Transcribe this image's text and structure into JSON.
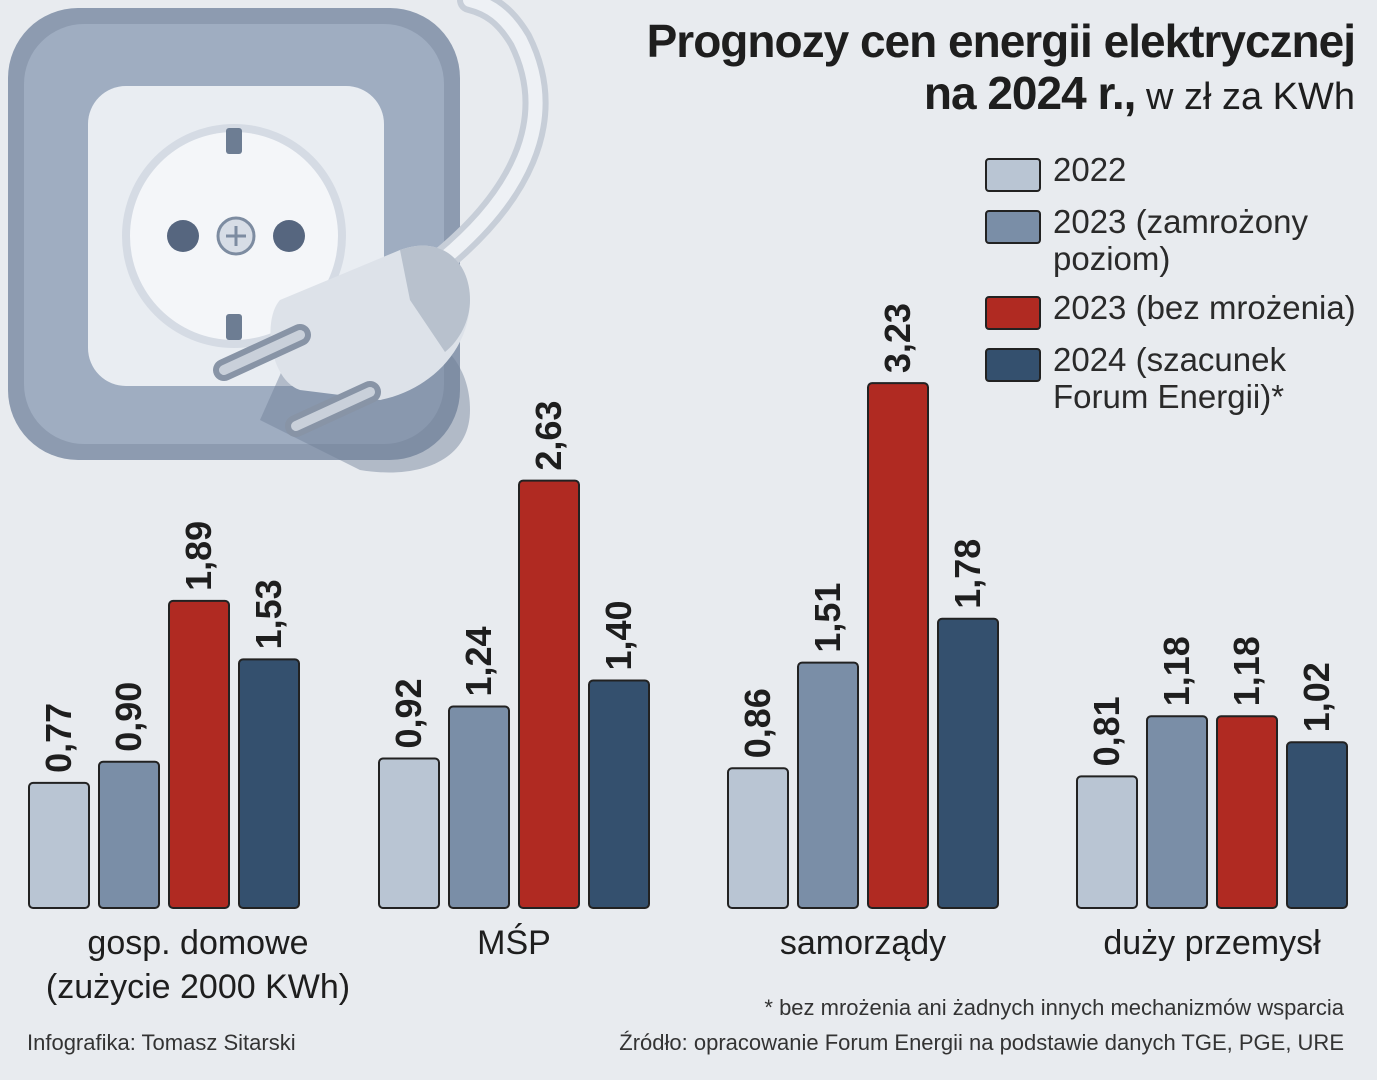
{
  "title": {
    "line1": "Prognozy cen energii elektrycznej",
    "line2_bold": "na 2024 r.,",
    "line2_regular": " w zł za KWh"
  },
  "colors": {
    "s2022": "#b9c5d3",
    "s2023z": "#7a8ea7",
    "s2023b": "#b02a22",
    "s2024": "#34506e",
    "axis": "#222222"
  },
  "chart_data": {
    "type": "bar",
    "title": "Prognozy cen energii elektrycznej na 2024 r., w zł za KWh",
    "ylabel": "zł za KWh",
    "ylim": [
      0,
      3.5
    ],
    "categories": [
      "gosp. domowe (zużycie 2000 KWh)",
      "MŚP",
      "samorządy",
      "duży przemysł"
    ],
    "category_lines": [
      [
        "gosp. domowe",
        "(zużycie 2000 KWh)"
      ],
      [
        "MŚP"
      ],
      [
        "samorządy"
      ],
      [
        "duży przemysł"
      ]
    ],
    "series": [
      {
        "name": "2022",
        "color_key": "s2022",
        "values": [
          0.77,
          0.92,
          0.86,
          0.81
        ],
        "labels": [
          "0,77",
          "0,92",
          "0,86",
          "0,81"
        ]
      },
      {
        "name": "2023 (zamrożony poziom)",
        "color_key": "s2023z",
        "values": [
          0.9,
          1.24,
          1.51,
          1.18
        ],
        "labels": [
          "0,90",
          "1,24",
          "1,51",
          "1,18"
        ]
      },
      {
        "name": "2023 (bez mrożenia)",
        "color_key": "s2023b",
        "values": [
          1.89,
          2.63,
          3.23,
          1.18
        ],
        "labels": [
          "1,89",
          "2,63",
          "3,23",
          "1,18"
        ]
      },
      {
        "name": "2024 (szacunek Forum Energii)*",
        "color_key": "s2024",
        "values": [
          1.53,
          1.4,
          1.78,
          1.02
        ],
        "labels": [
          "1,53",
          "1,40",
          "1,78",
          "1,02"
        ]
      }
    ],
    "legend_position": "top-right"
  },
  "legend": [
    {
      "color_key": "s2022",
      "label": "2022"
    },
    {
      "color_key": "s2023z",
      "label": "2023 (zamrożony poziom)"
    },
    {
      "color_key": "s2023b",
      "label": "2023 (bez mrożenia)"
    },
    {
      "color_key": "s2024",
      "label": "2024 (szacunek Forum Energii)*"
    }
  ],
  "footnote": "* bez mrożenia ani żadnych innych mechanizmów wsparcia",
  "source": "Źródło: opracowanie Forum Energii na podstawie danych TGE, PGE, URE",
  "credit": "Infografika: Tomasz Sitarski",
  "illustration": {
    "icon": "socket-plug-illustration"
  }
}
